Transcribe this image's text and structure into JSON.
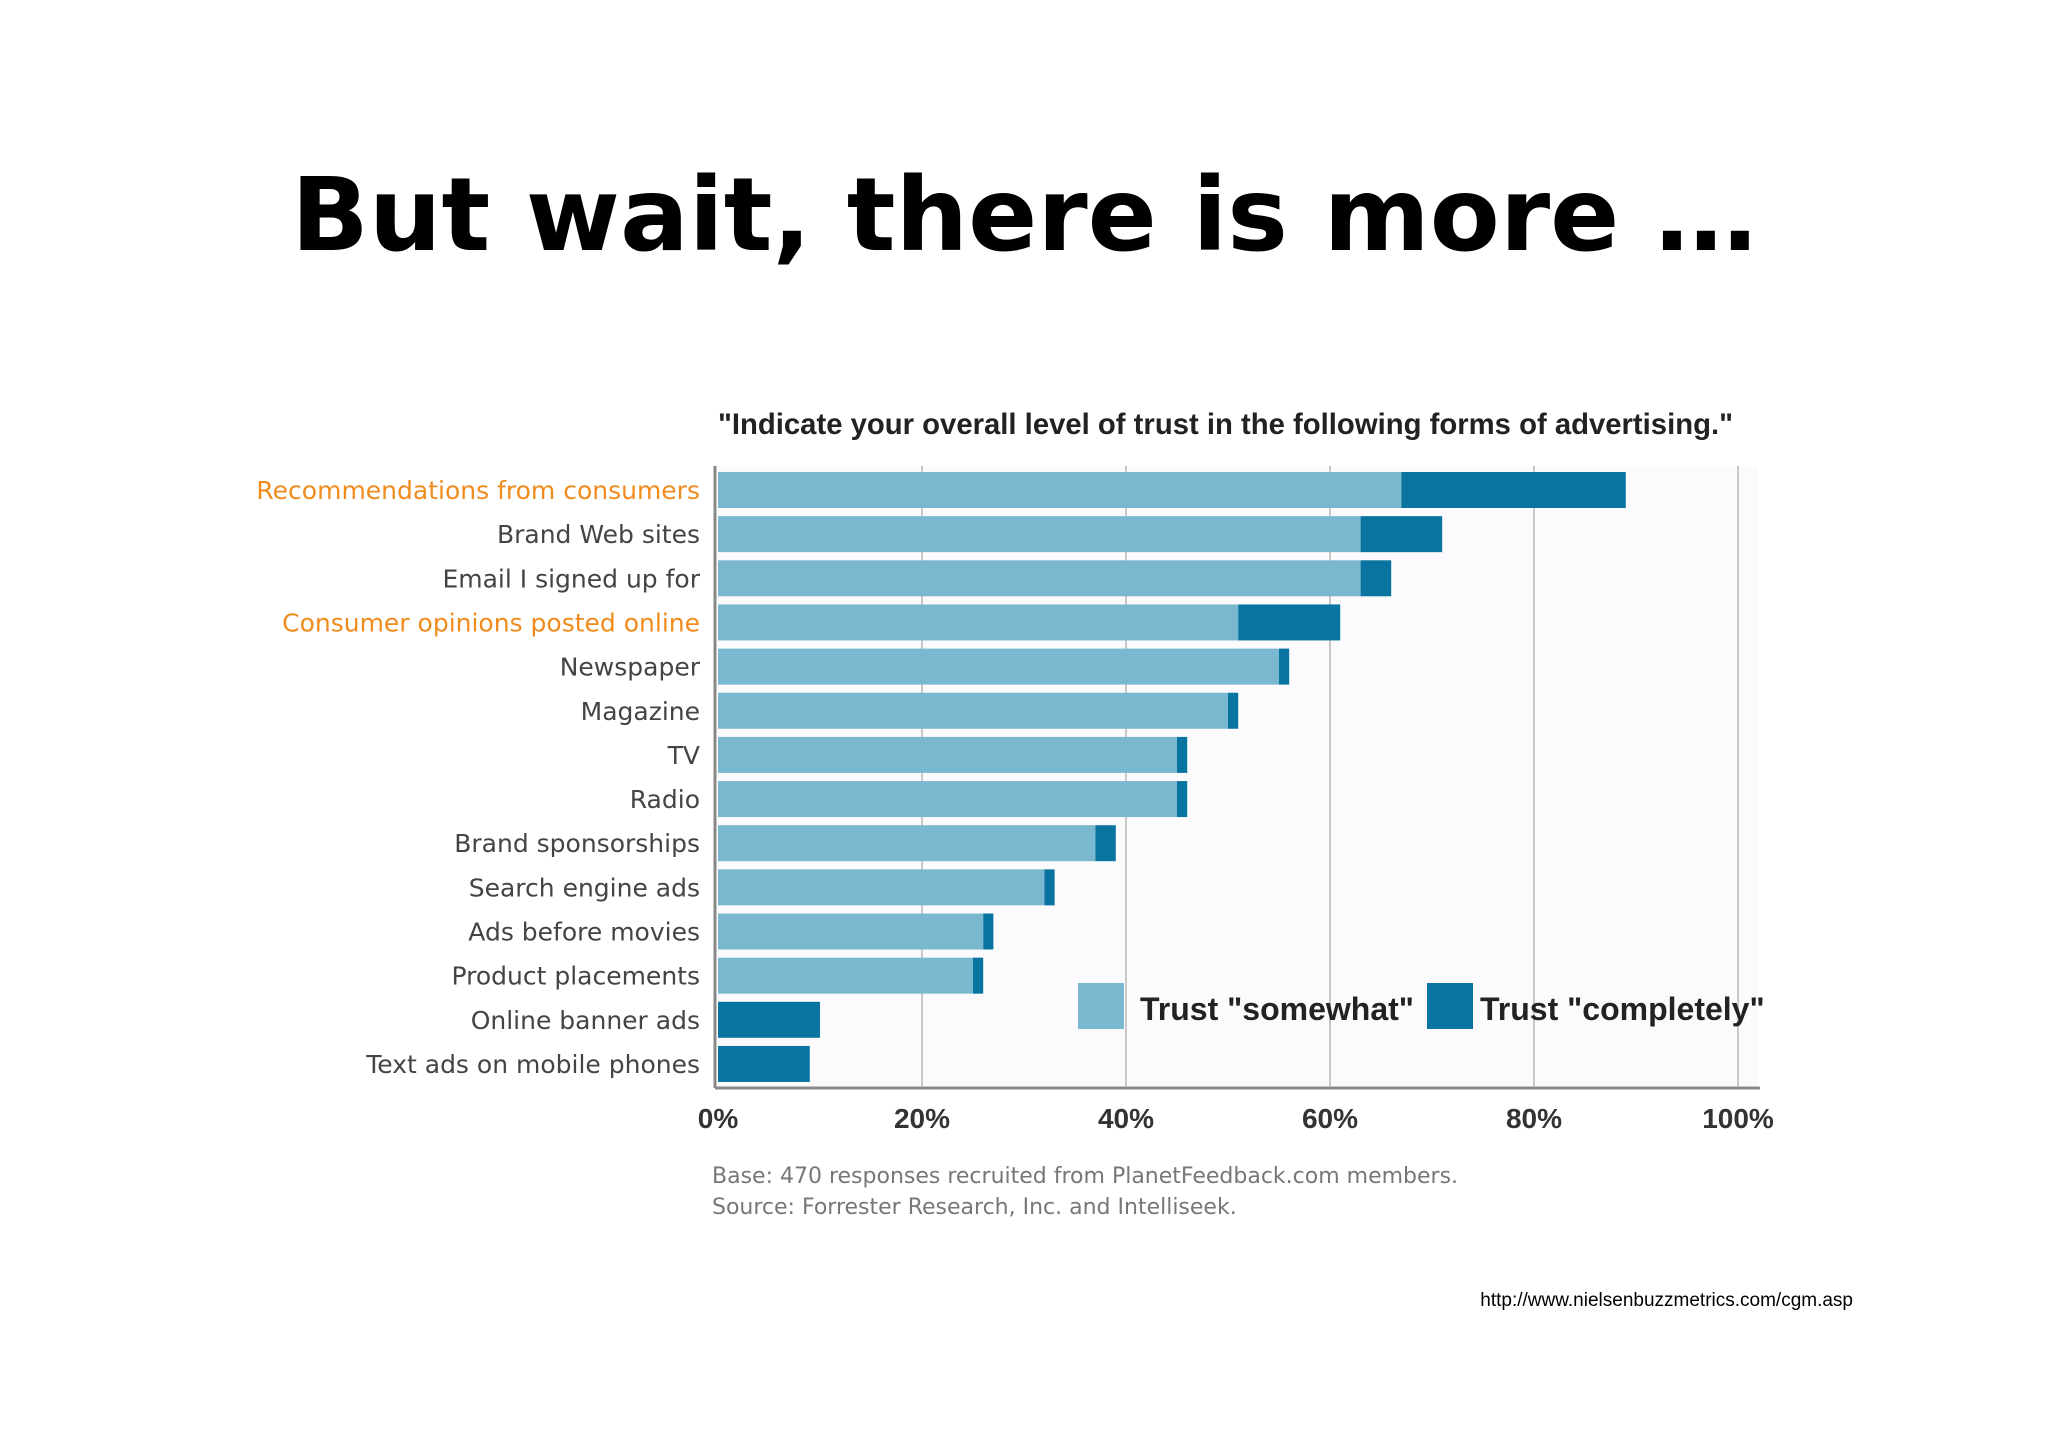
{
  "slide": {
    "title": "But wait, there is more …",
    "source_url": "http://www.nielsenbuzzmetrics.com/cgm.asp"
  },
  "chart_data": {
    "type": "bar",
    "orientation": "horizontal",
    "stacked": true,
    "title": "\"Indicate your overall level of trust in the following forms of advertising.\"",
    "categories": [
      "Recommendations from consumers",
      "Brand Web sites",
      "Email I signed up for",
      "Consumer opinions posted online",
      "Newspaper",
      "Magazine",
      "TV",
      "Radio",
      "Brand sponsorships",
      "Search engine ads",
      "Ads before movies",
      "Product placements",
      "Online banner ads",
      "Text ads on mobile phones"
    ],
    "highlighted_categories": [
      "Recommendations from consumers",
      "Consumer opinions posted online"
    ],
    "series": [
      {
        "name": "Trust \"somewhat\"",
        "color": "#7ab8d0",
        "values": [
          67,
          63,
          63,
          51,
          55,
          50,
          45,
          45,
          37,
          32,
          26,
          25,
          0,
          0
        ]
      },
      {
        "name": "Trust \"completely\"",
        "color": "#0a74a0",
        "values": [
          22,
          8,
          3,
          10,
          1,
          1,
          1,
          1,
          2,
          1,
          1,
          1,
          10,
          9
        ]
      }
    ],
    "xlim": [
      0,
      100
    ],
    "xticks": [
      "0%",
      "20%",
      "40%",
      "60%",
      "80%",
      "100%"
    ],
    "grid": true,
    "legend": "bottom-right",
    "notes": [
      "Base: 470 responses recruited from PlanetFeedback.com members.",
      "Source: Forrester Research, Inc. and Intelliseek."
    ],
    "colors": {
      "label_default": "#444444",
      "label_highlight": "#f08c1e",
      "grid": "#c8c8c8",
      "axis": "#888888"
    }
  }
}
